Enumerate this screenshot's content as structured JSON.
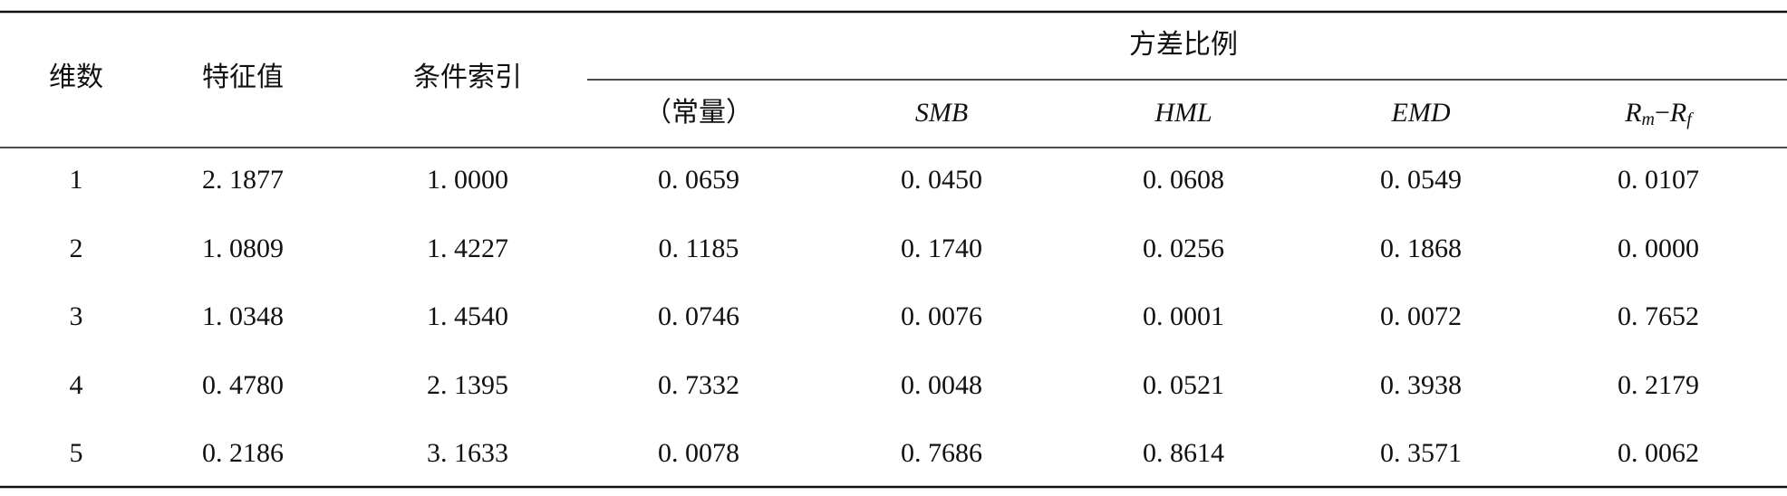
{
  "table": {
    "header": {
      "left": [
        "维数",
        "特征值",
        "条件索引"
      ],
      "group": "方差比例",
      "sub": [
        "（常量）",
        "SMB",
        "HML",
        "EMD"
      ],
      "last": [
        "R",
        "m",
        "−",
        "R",
        "f"
      ]
    },
    "rows": [
      [
        "1",
        "2. 1877",
        "1. 0000",
        "0. 0659",
        "0. 0450",
        "0. 0608",
        "0. 0549",
        "0. 0107"
      ],
      [
        "2",
        "1. 0809",
        "1. 4227",
        "0. 1185",
        "0. 1740",
        "0. 0256",
        "0. 1868",
        "0. 0000"
      ],
      [
        "3",
        "1. 0348",
        "1. 4540",
        "0. 0746",
        "0. 0076",
        "0. 0001",
        "0. 0072",
        "0. 7652"
      ],
      [
        "4",
        "0. 4780",
        "2. 1395",
        "0. 7332",
        "0. 0048",
        "0. 0521",
        "0. 3938",
        "0. 2179"
      ],
      [
        "5",
        "0. 2186",
        "3. 1633",
        "0. 0078",
        "0. 7686",
        "0. 8614",
        "0. 3571",
        "0. 0062"
      ]
    ]
  }
}
